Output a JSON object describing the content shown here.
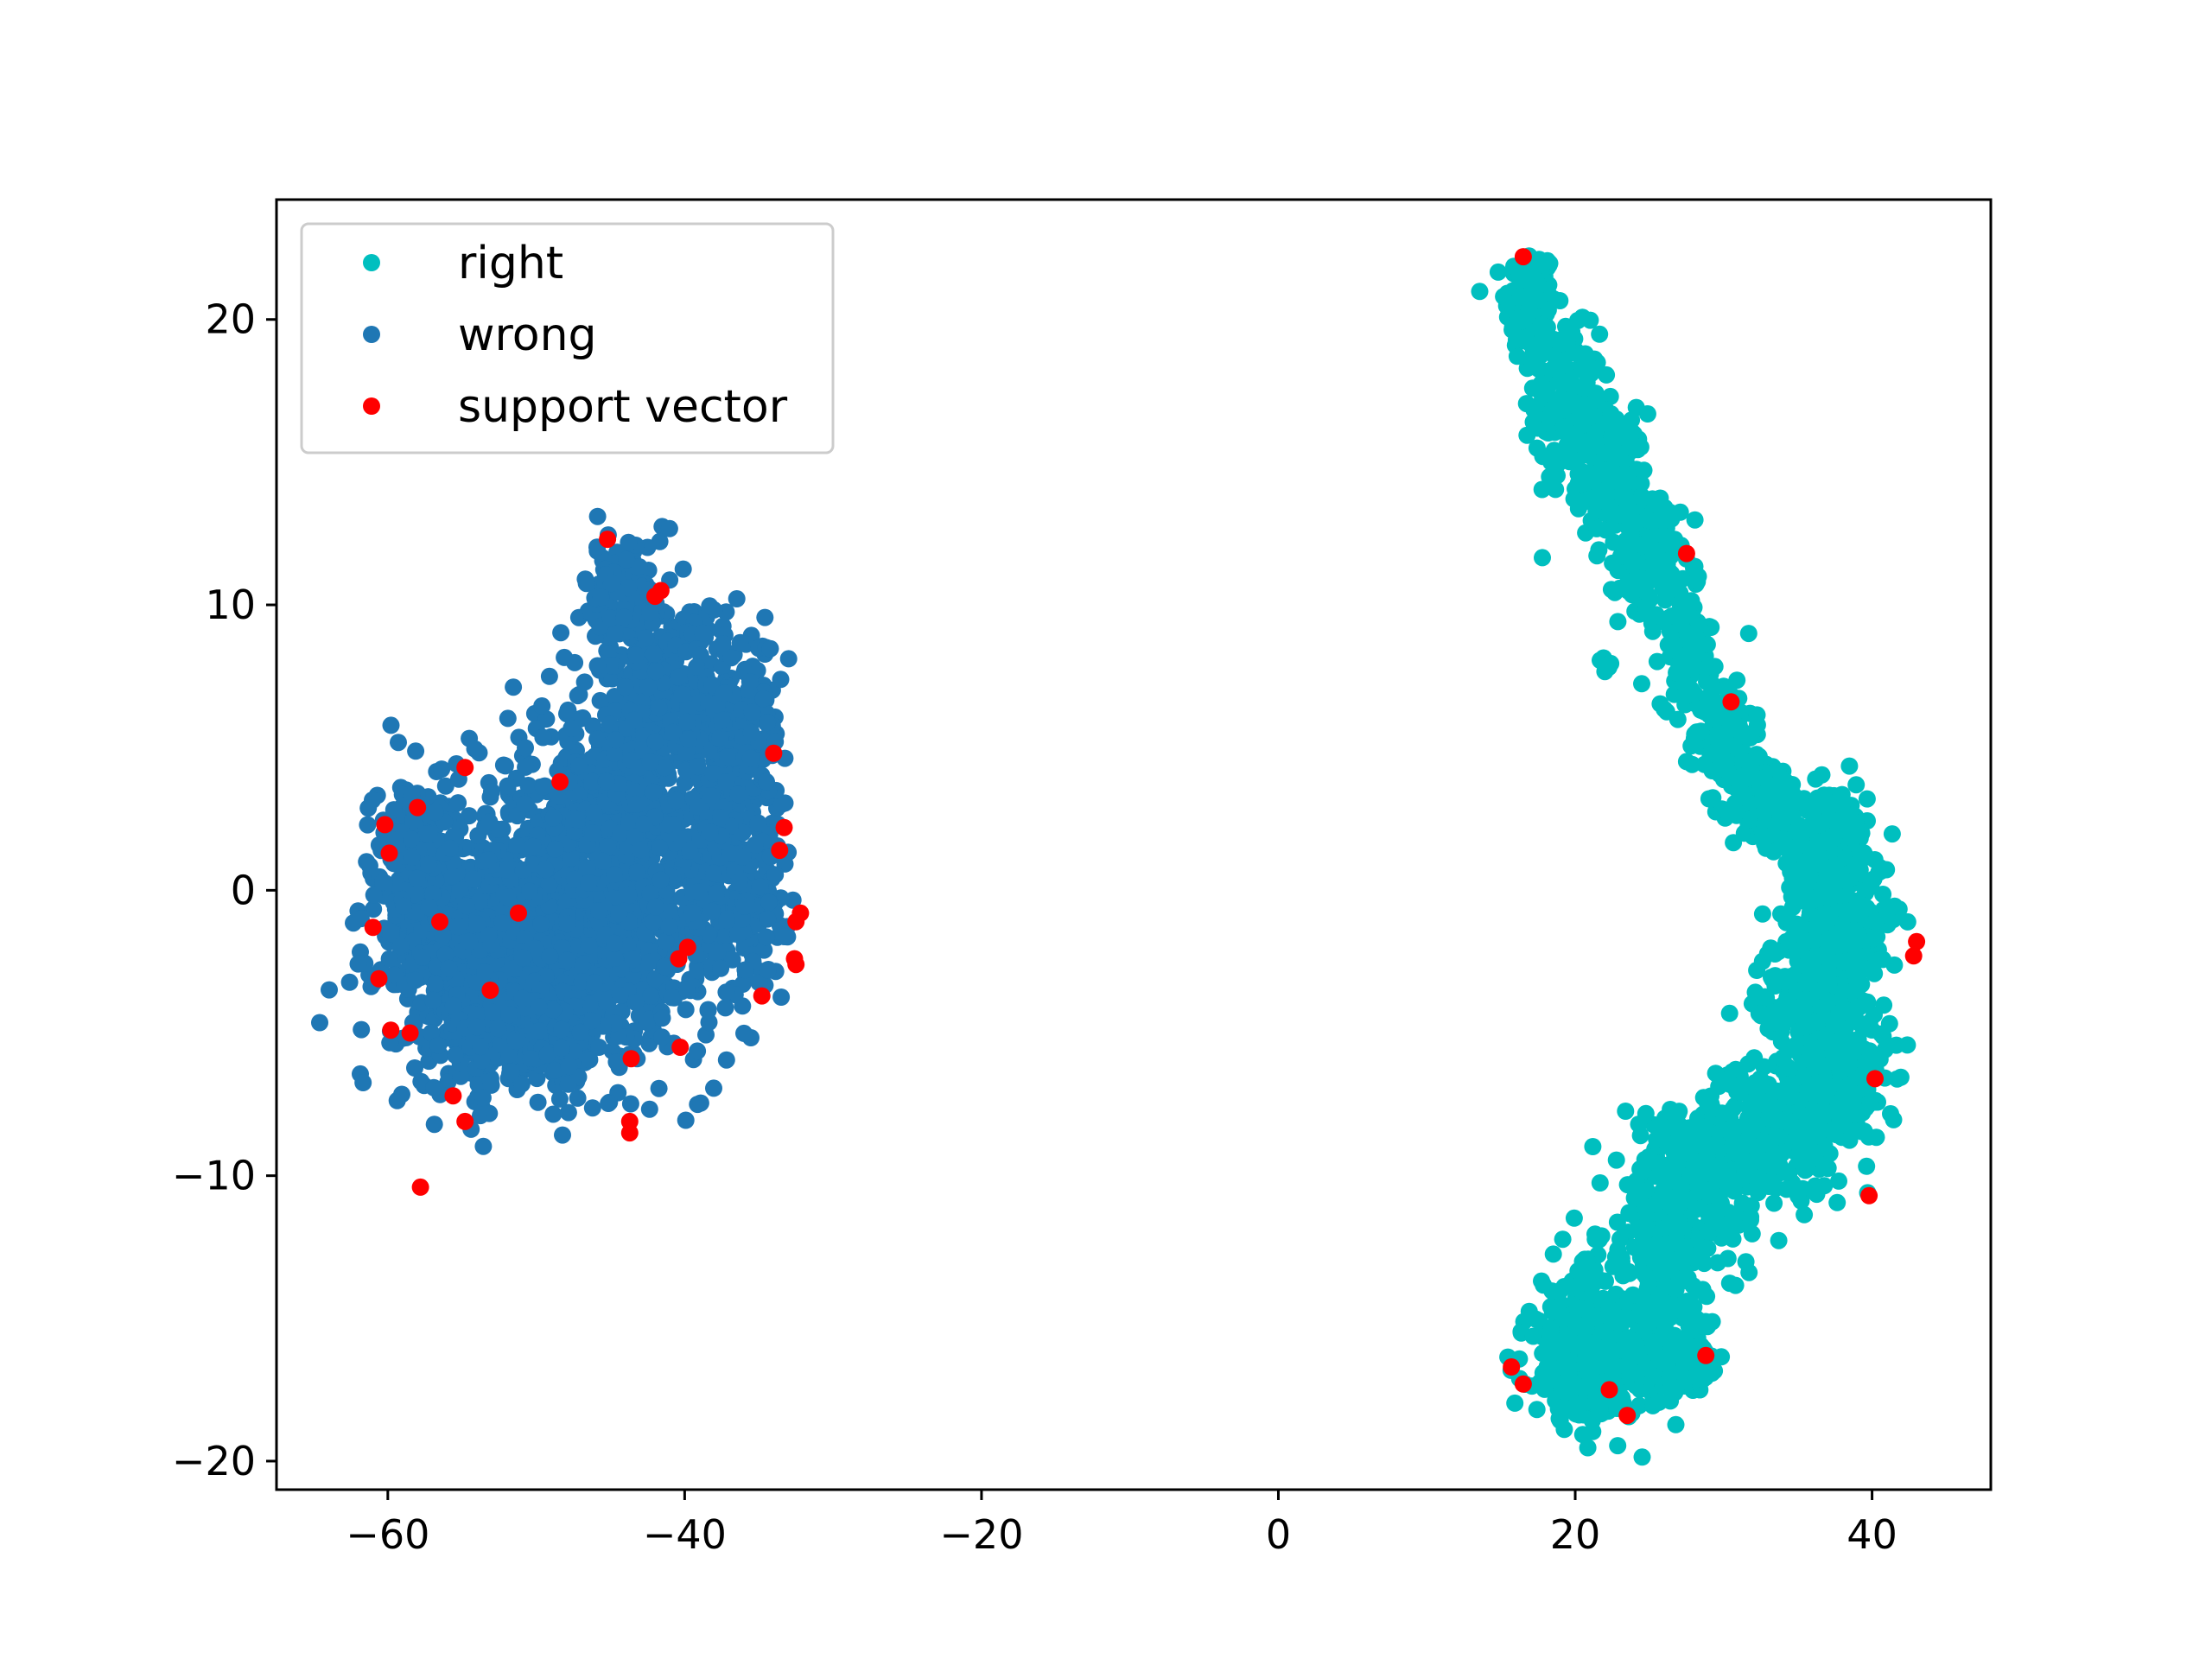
{
  "chart_data": {
    "type": "scatter",
    "title": "",
    "xlabel": "",
    "ylabel": "",
    "xlim": [
      -67.5,
      48
    ],
    "ylim": [
      -21,
      24.2
    ],
    "xticks": [
      -60,
      -40,
      -20,
      0,
      20,
      40
    ],
    "yticks": [
      -20,
      -10,
      0,
      10,
      20
    ],
    "xtick_labels": [
      "−60",
      "−40",
      "−20",
      "0",
      "20",
      "40"
    ],
    "ytick_labels": [
      "−20",
      "−10",
      "0",
      "10",
      "20"
    ],
    "grid": false,
    "legend_position": "top-left",
    "series": [
      {
        "name": "right",
        "color": "#00bfbf",
        "clusters": [
          {
            "x": 17.0,
            "y": 20.5,
            "sx": 1.0,
            "sy": 1.2,
            "n": 160
          },
          {
            "x": 19.5,
            "y": 17.0,
            "sx": 1.3,
            "sy": 1.5,
            "n": 200
          },
          {
            "x": 22.5,
            "y": 14.5,
            "sx": 1.3,
            "sy": 1.3,
            "n": 180
          },
          {
            "x": 25.0,
            "y": 11.5,
            "sx": 1.2,
            "sy": 1.3,
            "n": 150
          },
          {
            "x": 27.5,
            "y": 8.5,
            "sx": 1.0,
            "sy": 1.2,
            "n": 110
          },
          {
            "x": 30.0,
            "y": 5.5,
            "sx": 1.2,
            "sy": 1.2,
            "n": 130
          },
          {
            "x": 33.0,
            "y": 3.0,
            "sx": 1.5,
            "sy": 1.0,
            "n": 160
          },
          {
            "x": 37.0,
            "y": 1.5,
            "sx": 1.6,
            "sy": 1.3,
            "n": 220
          },
          {
            "x": 38.0,
            "y": -1.0,
            "sx": 1.8,
            "sy": 1.5,
            "n": 250
          },
          {
            "x": 36.0,
            "y": -4.0,
            "sx": 2.2,
            "sy": 1.5,
            "n": 250
          },
          {
            "x": 37.5,
            "y": -7.0,
            "sx": 2.0,
            "sy": 1.6,
            "n": 220
          },
          {
            "x": 33.0,
            "y": -8.5,
            "sx": 2.5,
            "sy": 1.3,
            "n": 200
          },
          {
            "x": 28.0,
            "y": -9.5,
            "sx": 2.5,
            "sy": 1.3,
            "n": 200
          },
          {
            "x": 26.5,
            "y": -12.5,
            "sx": 2.8,
            "sy": 1.5,
            "n": 220
          },
          {
            "x": 21.0,
            "y": -15.5,
            "sx": 2.5,
            "sy": 1.5,
            "n": 260
          },
          {
            "x": 26.0,
            "y": -16.5,
            "sx": 2.5,
            "sy": 1.0,
            "n": 150
          },
          {
            "x": 20.5,
            "y": -17.2,
            "sx": 2.0,
            "sy": 0.8,
            "n": 140
          },
          {
            "x": 22.0,
            "y": 7.8,
            "sx": 0.2,
            "sy": 0.2,
            "n": 6
          }
        ]
      },
      {
        "name": "wrong",
        "color": "#1f77b4",
        "clusters": [
          {
            "x": -56.0,
            "y": -1.5,
            "sx": 2.8,
            "sy": 2.5,
            "n": 500
          },
          {
            "x": -50.0,
            "y": -2.5,
            "sx": 3.5,
            "sy": 2.5,
            "n": 500
          },
          {
            "x": -44.0,
            "y": -1.0,
            "sx": 3.0,
            "sy": 2.8,
            "n": 450
          },
          {
            "x": -37.0,
            "y": 0.0,
            "sx": 2.2,
            "sy": 2.5,
            "n": 350
          },
          {
            "x": -47.0,
            "y": 3.0,
            "sx": 4.0,
            "sy": 2.0,
            "n": 300
          },
          {
            "x": -42.0,
            "y": 6.5,
            "sx": 3.0,
            "sy": 2.5,
            "n": 350
          },
          {
            "x": -37.0,
            "y": 5.5,
            "sx": 2.0,
            "sy": 2.0,
            "n": 220
          },
          {
            "x": -44.0,
            "y": 10.5,
            "sx": 1.5,
            "sy": 1.2,
            "n": 120
          },
          {
            "x": -51.0,
            "y": -5.0,
            "sx": 3.5,
            "sy": 1.2,
            "n": 250
          },
          {
            "x": -58.0,
            "y": 1.5,
            "sx": 1.8,
            "sy": 1.5,
            "n": 120
          }
        ]
      },
      {
        "name": "support vector",
        "color": "#ff0000",
        "points": [
          [
            16.5,
            22.2
          ],
          [
            27.5,
            11.8
          ],
          [
            30.5,
            6.6
          ],
          [
            43.0,
            -1.8
          ],
          [
            42.8,
            -2.3
          ],
          [
            40.2,
            -6.6
          ],
          [
            39.8,
            -10.7
          ],
          [
            15.7,
            -16.7
          ],
          [
            16.5,
            -17.3
          ],
          [
            22.3,
            -17.5
          ],
          [
            23.5,
            -18.4
          ],
          [
            28.8,
            -16.3
          ],
          [
            -45.2,
            12.3
          ],
          [
            -42.0,
            10.3
          ],
          [
            -41.6,
            10.5
          ],
          [
            -54.8,
            4.3
          ],
          [
            -48.4,
            3.8
          ],
          [
            -34.0,
            4.8
          ],
          [
            -33.3,
            2.2
          ],
          [
            -33.6,
            1.4
          ],
          [
            -60.2,
            2.3
          ],
          [
            -59.9,
            1.3
          ],
          [
            -58.0,
            2.9
          ],
          [
            -56.5,
            -1.1
          ],
          [
            -51.2,
            -0.8
          ],
          [
            -32.2,
            -0.8
          ],
          [
            -32.5,
            -1.1
          ],
          [
            -61.0,
            -1.3
          ],
          [
            -60.6,
            -3.1
          ],
          [
            -39.8,
            -2.0
          ],
          [
            -40.4,
            -2.4
          ],
          [
            -32.6,
            -2.4
          ],
          [
            -32.5,
            -2.6
          ],
          [
            -53.1,
            -3.5
          ],
          [
            -59.8,
            -4.9
          ],
          [
            -58.5,
            -5.0
          ],
          [
            -34.8,
            -3.7
          ],
          [
            -40.3,
            -5.5
          ],
          [
            -43.6,
            -5.9
          ],
          [
            -55.6,
            -7.2
          ],
          [
            -54.8,
            -8.1
          ],
          [
            -43.7,
            -8.1
          ],
          [
            -43.7,
            -8.5
          ],
          [
            -57.8,
            -10.4
          ]
        ]
      }
    ]
  }
}
